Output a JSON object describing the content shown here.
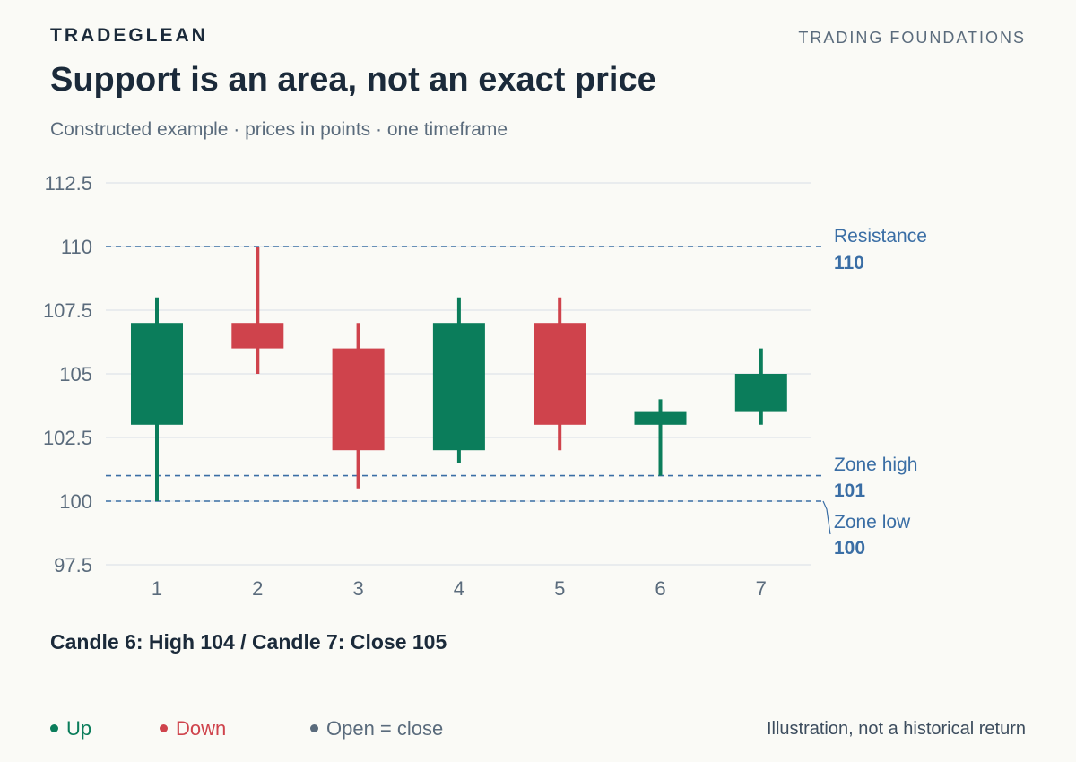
{
  "header": {
    "brand": "TRADEGLEAN",
    "section": "TRADING FOUNDATIONS",
    "title": "Support is an area, not an exact price",
    "subtitle": "Constructed example · prices in points · one timeframe"
  },
  "colors": {
    "up": "#0b7d5b",
    "down": "#cf434c",
    "neutral": "#5a6b7c",
    "level": "#3a6ea5",
    "grid": "#dfe3ea",
    "axis_text": "#5a6b7c"
  },
  "chart_data": {
    "type": "candlestick",
    "title": "Support is an area, not an exact price",
    "x_categories": [
      "1",
      "2",
      "3",
      "4",
      "5",
      "6",
      "7"
    ],
    "y_ticks": [
      "97.5",
      "100",
      "102.5",
      "105",
      "107.5",
      "110",
      "112.5"
    ],
    "ylim": [
      97.5,
      112.5
    ],
    "grid": true,
    "candles": [
      {
        "x": "1",
        "open": 103,
        "high": 108,
        "low": 100,
        "close": 107,
        "direction": "up"
      },
      {
        "x": "2",
        "open": 107,
        "high": 110,
        "low": 105,
        "close": 106,
        "direction": "down"
      },
      {
        "x": "3",
        "open": 106,
        "high": 107,
        "low": 100.5,
        "close": 102,
        "direction": "down"
      },
      {
        "x": "4",
        "open": 102,
        "high": 108,
        "low": 101.5,
        "close": 107,
        "direction": "up"
      },
      {
        "x": "5",
        "open": 107,
        "high": 108,
        "low": 102,
        "close": 103,
        "direction": "down"
      },
      {
        "x": "6",
        "open": 103,
        "high": 104,
        "low": 101,
        "close": 103.5,
        "direction": "up"
      },
      {
        "x": "7",
        "open": 103.5,
        "high": 106,
        "low": 103,
        "close": 105,
        "direction": "up"
      }
    ],
    "levels": [
      {
        "name": "Resistance",
        "label": "Resistance",
        "value_label": "110",
        "value": 110
      },
      {
        "name": "Zone high",
        "label": "Zone high",
        "value_label": "101",
        "value": 101
      },
      {
        "name": "Zone low",
        "label": "Zone low",
        "value_label": "100",
        "value": 100
      }
    ]
  },
  "caption": "Candle 6: High 104 / Candle 7: Close 105",
  "legend": {
    "up": "Up",
    "down": "Down",
    "neutral": "Open = close"
  },
  "footnote": "Illustration, not a historical return"
}
